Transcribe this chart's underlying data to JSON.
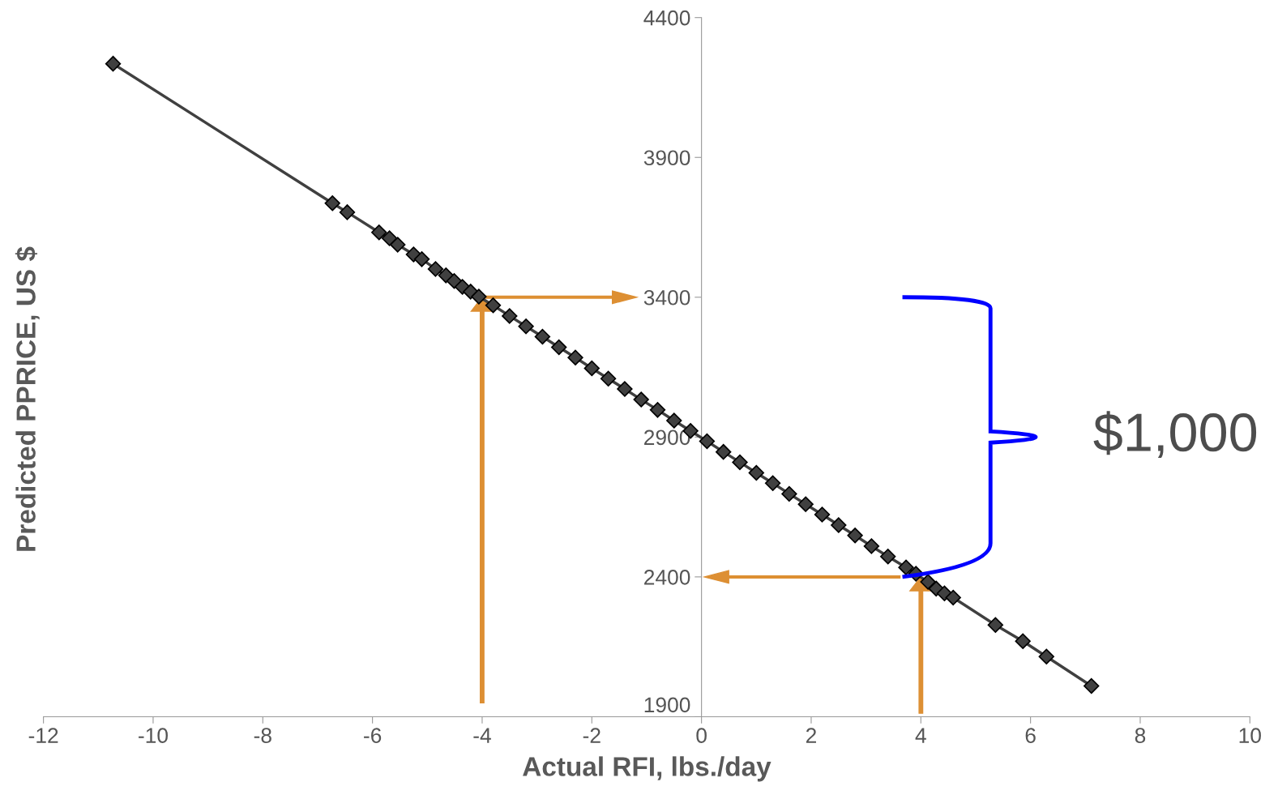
{
  "chart_data": {
    "type": "line",
    "xlabel": "Actual RFI, lbs./day",
    "ylabel": "Predicted PPRICE, US $",
    "xlim": [
      -12,
      10
    ],
    "xticks": [
      -12,
      -10,
      -8,
      -6,
      -4,
      -2,
      0,
      2,
      4,
      6,
      8,
      10
    ],
    "ylim": [
      1900,
      4400
    ],
    "yticks": [
      1900,
      2400,
      2900,
      3400,
      3900,
      4400
    ],
    "grid": false,
    "marker": "diamond",
    "line_style": "solid",
    "series": [
      {
        "color": "#404040",
        "x": [
          -10.73,
          -6.73,
          -6.46,
          -5.88,
          -5.69,
          -5.54,
          -5.25,
          -5.1,
          -4.85,
          -4.66,
          -4.51,
          -4.36,
          -4.21,
          -4.06,
          -3.8,
          -3.5,
          -3.2,
          -2.9,
          -2.6,
          -2.3,
          -2.0,
          -1.7,
          -1.4,
          -1.1,
          -0.8,
          -0.5,
          -0.2,
          0.1,
          0.4,
          0.7,
          1.0,
          1.3,
          1.6,
          1.9,
          2.2,
          2.5,
          2.8,
          3.1,
          3.4,
          3.73,
          3.91,
          4.13,
          4.28,
          4.43,
          4.59,
          5.36,
          5.86,
          6.29,
          7.11
        ],
        "values": [
          4235,
          3736,
          3704,
          3632,
          3611,
          3588,
          3553,
          3536,
          3501,
          3478,
          3458,
          3437,
          3420,
          3402,
          3371,
          3333,
          3296,
          3259,
          3221,
          3184,
          3146,
          3109,
          3072,
          3034,
          2997,
          2959,
          2922,
          2885,
          2847,
          2810,
          2772,
          2735,
          2697,
          2660,
          2623,
          2585,
          2548,
          2510,
          2473,
          2434,
          2411,
          2382,
          2358,
          2341,
          2326,
          2228,
          2170,
          2115,
          2010
        ]
      }
    ],
    "annotations": [
      "$1,000"
    ]
  }
}
